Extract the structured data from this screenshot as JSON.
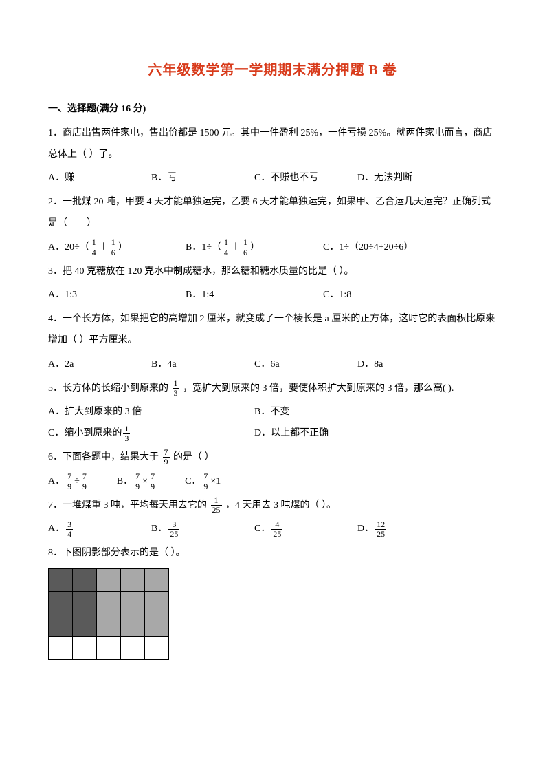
{
  "title": "六年级数学第一学期期末满分押题 B 卷",
  "section1": "一、选择题(满分 16 分)",
  "q1": {
    "stem": "1．商店出售两件家电，售出价都是 1500 元。其中一件盈利 25%，一件亏损 25%。就两件家电而言，商店总体上（      ）了。",
    "a": "A．赚",
    "b": "B．亏",
    "c": "C．不赚也不亏",
    "d": "D．无法判断"
  },
  "q2": {
    "stem": "2．一批煤 20 吨，甲要 4 天才能单独运完，乙要 6 天才能单独运完，如果甲、乙合运几天运完？正确列式是（　　）",
    "a_pre": "A．20÷（",
    "a_mid": "＋",
    "a_post": "）",
    "b_pre": "B．1÷（",
    "b_mid": "＋",
    "b_post": "）",
    "c": "C．1÷（20÷4+20÷6）"
  },
  "q3": {
    "stem": "3．把 40 克糖放在 120 克水中制成糖水，那么糖和糖水质量的比是（    ）。",
    "a": "A．1:3",
    "b": "B．1:4",
    "c": "C．1:8"
  },
  "q4": {
    "stem": "4．一个长方体，如果把它的高增加 2 厘米，就变成了一个棱长是 a 厘米的正方体，这时它的表面积比原来增加（       ）平方厘米。",
    "a": "A．2a",
    "b": "B．4a",
    "c": "C．6a",
    "d": "D．8a"
  },
  "q5": {
    "stem_pre": "5．长方体的长缩小到原来的",
    "stem_post": "，宽扩大到原来的 3 倍，要使体积扩大到原来的 3 倍，那么高(       ).",
    "a": "A．扩大到原来的 3 倍",
    "b": "B．不变",
    "c_pre": "C．缩小到原来的",
    "d": "D．以上都不正确"
  },
  "q6": {
    "stem_pre": "6．下面各题中，结果大于",
    "stem_post": "的是（   ）",
    "a_pre": "A．",
    "a_mid": "÷",
    "b_pre": "B．",
    "b_mid": "×",
    "c_pre": "C．",
    "c_post": "×1"
  },
  "q7": {
    "stem_pre": "7．一堆煤重 3 吨，平均每天用去它的",
    "stem_post": "，4 天用去 3 吨煤的（    ）。",
    "a": "A．",
    "b": "B．",
    "c": "C．",
    "d": "D．"
  },
  "q8": {
    "stem": "8．下图阴影部分表示的是（       ）。",
    "rows": [
      [
        "dark",
        "dark",
        "light",
        "light",
        "light"
      ],
      [
        "dark",
        "dark",
        "light",
        "light",
        "light"
      ],
      [
        "dark",
        "dark",
        "light",
        "light",
        "light"
      ],
      [
        "white",
        "white",
        "white",
        "white",
        "white"
      ]
    ]
  },
  "fractions": {
    "f14": {
      "n": "1",
      "d": "4"
    },
    "f16": {
      "n": "1",
      "d": "6"
    },
    "f13": {
      "n": "1",
      "d": "3"
    },
    "f79": {
      "n": "7",
      "d": "9"
    },
    "f125": {
      "n": "1",
      "d": "25"
    },
    "f34": {
      "n": "3",
      "d": "4"
    },
    "f325": {
      "n": "3",
      "d": "25"
    },
    "f425": {
      "n": "4",
      "d": "25"
    },
    "f1225": {
      "n": "12",
      "d": "25"
    }
  }
}
